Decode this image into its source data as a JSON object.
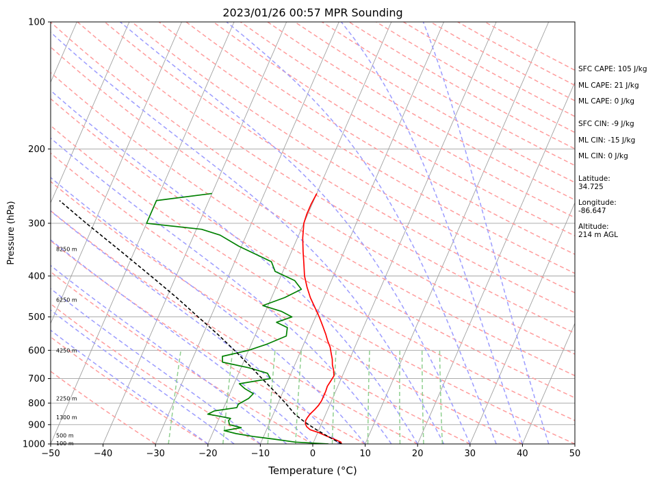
{
  "chart_data": {
    "type": "line",
    "title": "2023/01/26 00:57 MPR Sounding",
    "xlabel": "Temperature (°C)",
    "ylabel": "Pressure (hPa)",
    "xlim": [
      -50,
      50
    ],
    "ylim": [
      1000,
      100
    ],
    "yscale": "log",
    "grid": true,
    "x_ticks": [
      -50,
      -40,
      -30,
      -20,
      -10,
      0,
      10,
      20,
      30,
      40,
      50
    ],
    "x_tick_labels": [
      "−50",
      "−40",
      "−30",
      "−20",
      "−10",
      "0",
      "10",
      "20",
      "30",
      "40",
      "50"
    ],
    "y_ticks": [
      100,
      200,
      300,
      400,
      500,
      600,
      700,
      800,
      900,
      1000
    ],
    "y_tick_labels": [
      "100",
      "200",
      "300",
      "400",
      "500",
      "600",
      "700",
      "800",
      "900",
      "1000"
    ],
    "skew": 35,
    "colors": {
      "temperature": "#ff0000",
      "dewpoint": "#008000",
      "parcel": "#000000",
      "isotherm": "#a0a0a0",
      "dry_adiabat": "#ff9c9c",
      "moist_adiabat": "#9c9cff",
      "mixing_ratio": "#8fcf8f"
    },
    "series": [
      {
        "key": "temperature",
        "pressure": [
          1000,
          990,
          975,
          960,
          940,
          925,
          910,
          895,
          880,
          865,
          850,
          830,
          810,
          790,
          770,
          750,
          730,
          710,
          690,
          670,
          650,
          630,
          610,
          590,
          570,
          550,
          525,
          500,
          475,
          450,
          425,
          400,
          375,
          350,
          325,
          300,
          285,
          270,
          255
        ],
        "temperature": [
          5.5,
          5.2,
          3.8,
          2.2,
          0.2,
          -1.7,
          -2.6,
          -3.1,
          -3.3,
          -3.2,
          -3.0,
          -2.5,
          -2.1,
          -1.9,
          -1.9,
          -1.9,
          -2.0,
          -1.8,
          -1.6,
          -2.1,
          -2.8,
          -3.3,
          -4.0,
          -4.7,
          -5.7,
          -6.6,
          -7.9,
          -9.3,
          -10.9,
          -12.6,
          -14.1,
          -15.5,
          -16.6,
          -17.8,
          -19.0,
          -20.0,
          -20.2,
          -20.2,
          -20.0
        ]
      },
      {
        "key": "dewpoint",
        "pressure": [
          1000,
          990,
          975,
          960,
          945,
          930,
          915,
          900,
          880,
          870,
          860,
          850,
          835,
          820,
          805,
          780,
          760,
          740,
          720,
          700,
          680,
          660,
          640,
          620,
          600,
          580,
          555,
          530,
          515,
          500,
          485,
          470,
          450,
          430,
          410,
          390,
          370,
          340,
          320,
          310,
          300,
          265,
          255
        ],
        "temperature": [
          3.0,
          -3.5,
          -7.5,
          -12.0,
          -15.5,
          -18.0,
          -15.0,
          -17.5,
          -18.0,
          -17.8,
          -20.0,
          -22.5,
          -21.5,
          -17.5,
          -17.5,
          -16.0,
          -15.5,
          -17.5,
          -19.0,
          -13.5,
          -14.5,
          -18.5,
          -24.0,
          -24.5,
          -20.0,
          -17.0,
          -14.0,
          -14.5,
          -17.0,
          -14.5,
          -17.0,
          -21.0,
          -17.5,
          -15.0,
          -17.0,
          -21.5,
          -23.0,
          -30.5,
          -35.0,
          -39.0,
          -50.0,
          -50.0,
          -40.0
        ]
      },
      {
        "key": "parcel",
        "pressure": [
          1000,
          975,
          950,
          925,
          900,
          875,
          850,
          800,
          750,
          700,
          650,
          600,
          550,
          500,
          450,
          400,
          350,
          300,
          265
        ],
        "temperature": [
          5.5,
          3.5,
          1.5,
          -0.5,
          -2.4,
          -4.2,
          -5.9,
          -8.6,
          -11.7,
          -15.1,
          -18.7,
          -22.7,
          -27.2,
          -32.4,
          -38.1,
          -44.8,
          -52.5,
          -61.5,
          -68.5
        ]
      }
    ],
    "height_labels": [
      {
        "pressure": 996,
        "label": "100 m"
      },
      {
        "pressure": 955,
        "label": "500 m"
      },
      {
        "pressure": 865,
        "label": "1300 m"
      },
      {
        "pressure": 780,
        "label": "2250 m"
      },
      {
        "pressure": 600,
        "label": "4250 m"
      },
      {
        "pressure": 455,
        "label": "6250 m"
      },
      {
        "pressure": 345,
        "label": "8250 m"
      }
    ],
    "annotations": {
      "sfc_cape": "SFC CAPE: 105 J/kg",
      "ml_cape_1": "ML CAPE: 21 J/kg",
      "ml_cape_2": "ML CAPE: 0 J/kg",
      "sfc_cin": "SFC CIN: -9 J/kg",
      "ml_cin_1": "ML CIN: -15 J/kg",
      "ml_cin_2": "ML CIN: 0 J/kg",
      "latitude_label": "Latitude:",
      "latitude_value": "34.725",
      "longitude_label": "Longitude:",
      "longitude_value": "-86.647",
      "altitude_label": "Altitude:",
      "altitude_value": "214 m AGL"
    }
  }
}
